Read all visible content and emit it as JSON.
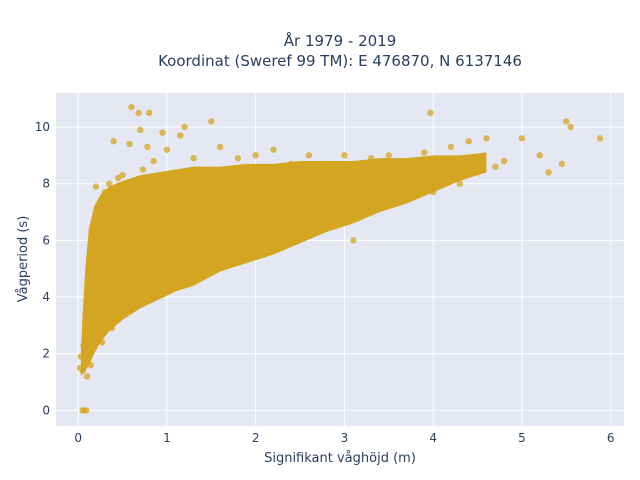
{
  "chart_data": {
    "type": "scatter",
    "title_line1": "År 1979 - 2019",
    "title_line2": "Koordinat (Sweref 99 TM): E 476870, N 6137146",
    "xlabel": "Signifikant våghöjd (m)",
    "ylabel": "Vågperiod (s)",
    "xlim": [
      -0.25,
      6.15
    ],
    "ylim": [
      -0.55,
      11.2
    ],
    "xticks": [
      "0",
      "1",
      "2",
      "3",
      "4",
      "5",
      "6"
    ],
    "yticks": [
      "0",
      "2",
      "4",
      "6",
      "8",
      "10"
    ],
    "grid": true,
    "colors": {
      "marker": "#d4a520",
      "plot_bg": "#e5e8f2",
      "grid": "#ffffff"
    },
    "points": [
      [
        0.05,
        0.0
      ],
      [
        0.07,
        0.0
      ],
      [
        0.09,
        0.0
      ],
      [
        0.02,
        1.5
      ],
      [
        0.03,
        1.9
      ],
      [
        0.05,
        1.4
      ],
      [
        0.06,
        2.3
      ],
      [
        0.08,
        1.7
      ],
      [
        0.09,
        2.8
      ],
      [
        0.1,
        1.2
      ],
      [
        0.12,
        3.3
      ],
      [
        0.14,
        1.6
      ],
      [
        0.15,
        4.0
      ],
      [
        0.17,
        2.2
      ],
      [
        0.19,
        5.2
      ],
      [
        0.2,
        7.9
      ],
      [
        0.22,
        3.1
      ],
      [
        0.25,
        6.5
      ],
      [
        0.27,
        2.4
      ],
      [
        0.3,
        7.7
      ],
      [
        0.32,
        3.6
      ],
      [
        0.35,
        8.0
      ],
      [
        0.38,
        2.9
      ],
      [
        0.4,
        9.5
      ],
      [
        0.43,
        4.6
      ],
      [
        0.45,
        8.2
      ],
      [
        0.48,
        3.3
      ],
      [
        0.5,
        8.3
      ],
      [
        0.53,
        6.1
      ],
      [
        0.55,
        3.7
      ],
      [
        0.58,
        9.4
      ],
      [
        0.6,
        10.7
      ],
      [
        0.62,
        8.1
      ],
      [
        0.65,
        4.2
      ],
      [
        0.68,
        10.5
      ],
      [
        0.7,
        9.9
      ],
      [
        0.73,
        8.5
      ],
      [
        0.75,
        4.0
      ],
      [
        0.78,
        9.3
      ],
      [
        0.8,
        10.5
      ],
      [
        0.85,
        8.8
      ],
      [
        0.9,
        4.2
      ],
      [
        0.95,
        9.8
      ],
      [
        1.0,
        9.2
      ],
      [
        1.05,
        4.4
      ],
      [
        1.1,
        8.4
      ],
      [
        1.15,
        9.7
      ],
      [
        1.2,
        10.0
      ],
      [
        1.25,
        4.7
      ],
      [
        1.3,
        8.9
      ],
      [
        1.4,
        5.0
      ],
      [
        1.5,
        10.2
      ],
      [
        1.6,
        9.3
      ],
      [
        1.7,
        5.2
      ],
      [
        1.8,
        8.9
      ],
      [
        1.9,
        5.3
      ],
      [
        2.0,
        9.0
      ],
      [
        2.1,
        5.5
      ],
      [
        2.2,
        9.2
      ],
      [
        2.3,
        5.9
      ],
      [
        2.4,
        8.7
      ],
      [
        2.5,
        6.2
      ],
      [
        2.6,
        9.0
      ],
      [
        2.7,
        6.5
      ],
      [
        2.8,
        8.7
      ],
      [
        2.9,
        6.5
      ],
      [
        3.0,
        9.0
      ],
      [
        3.1,
        6.0
      ],
      [
        3.2,
        7.0
      ],
      [
        3.3,
        8.9
      ],
      [
        3.4,
        7.3
      ],
      [
        3.5,
        9.0
      ],
      [
        3.6,
        7.6
      ],
      [
        3.7,
        8.8
      ],
      [
        3.8,
        7.9
      ],
      [
        3.9,
        9.1
      ],
      [
        3.97,
        10.5
      ],
      [
        4.0,
        7.7
      ],
      [
        4.1,
        8.6
      ],
      [
        4.2,
        9.3
      ],
      [
        4.3,
        8.0
      ],
      [
        4.4,
        9.5
      ],
      [
        4.5,
        8.4
      ],
      [
        4.6,
        9.6
      ],
      [
        4.7,
        8.6
      ],
      [
        4.8,
        8.8
      ],
      [
        5.0,
        9.6
      ],
      [
        5.2,
        9.0
      ],
      [
        5.3,
        8.4
      ],
      [
        5.45,
        8.7
      ],
      [
        5.5,
        10.2
      ],
      [
        5.55,
        10.0
      ],
      [
        5.88,
        9.6
      ]
    ],
    "band": {
      "x": [
        0.03,
        0.05,
        0.08,
        0.12,
        0.18,
        0.25,
        0.35,
        0.5,
        0.7,
        0.9,
        1.1,
        1.3,
        1.6,
        1.9,
        2.2,
        2.5,
        2.8,
        3.1,
        3.4,
        3.7,
        4.0,
        4.3,
        4.6
      ],
      "low": [
        1.2,
        1.3,
        1.4,
        1.6,
        2.0,
        2.4,
        2.8,
        3.2,
        3.6,
        3.9,
        4.2,
        4.4,
        4.9,
        5.2,
        5.5,
        5.9,
        6.3,
        6.6,
        7.0,
        7.3,
        7.7,
        8.1,
        8.4
      ],
      "high": [
        2.0,
        3.4,
        5.0,
        6.4,
        7.2,
        7.6,
        7.9,
        8.1,
        8.3,
        8.4,
        8.5,
        8.6,
        8.6,
        8.7,
        8.7,
        8.8,
        8.8,
        8.8,
        8.9,
        8.9,
        9.0,
        9.0,
        9.1
      ]
    }
  }
}
